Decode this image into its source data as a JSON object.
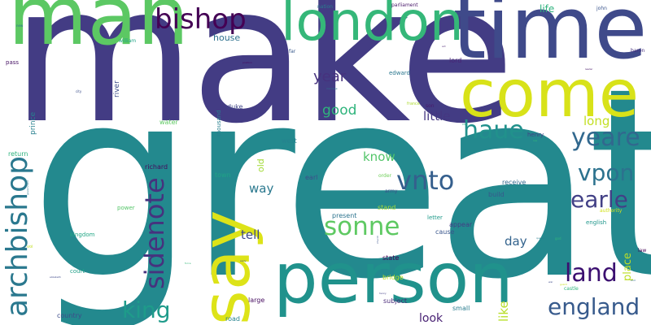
{
  "words": [
    {
      "text": "make",
      "color": "#433c84"
    },
    {
      "text": "great",
      "color": "#23898e"
    },
    {
      "text": "time",
      "color": "#3f4a8a"
    },
    {
      "text": "man",
      "color": "#5cc863"
    },
    {
      "text": "person",
      "color": "#20928c"
    },
    {
      "text": "come",
      "color": "#d8e219"
    },
    {
      "text": "london",
      "color": "#35b779"
    },
    {
      "text": "say",
      "color": "#dde318"
    },
    {
      "text": "bishop",
      "color": "#440154"
    },
    {
      "text": "archbishop",
      "color": "#2a788e"
    },
    {
      "text": "sidenote",
      "color": "#46327e"
    },
    {
      "text": "vnto",
      "color": "#355f8d"
    },
    {
      "text": "sonne",
      "color": "#5ec962"
    },
    {
      "text": "haue",
      "color": "#21918c"
    },
    {
      "text": "yeare",
      "color": "#31688e"
    },
    {
      "text": "vpon",
      "color": "#2c728e"
    },
    {
      "text": "earle",
      "color": "#424086"
    },
    {
      "text": "king",
      "color": "#1e9b8a"
    },
    {
      "text": "land",
      "color": "#3b0f70"
    },
    {
      "text": "england",
      "color": "#375a8c"
    },
    {
      "text": "year",
      "color": "#46327e"
    },
    {
      "text": "good",
      "color": "#2fb47c"
    },
    {
      "text": "little",
      "color": "#453781"
    },
    {
      "text": "know",
      "color": "#52c569"
    },
    {
      "text": "long",
      "color": "#c2df23"
    },
    {
      "text": "way",
      "color": "#2a788e"
    },
    {
      "text": "tell",
      "color": "#3e4989"
    },
    {
      "text": "day",
      "color": "#33638d"
    },
    {
      "text": "look",
      "color": "#482173"
    },
    {
      "text": "like",
      "color": "#b8de29"
    },
    {
      "text": "place",
      "color": "#bddf26"
    },
    {
      "text": "house",
      "color": "#2d718e"
    },
    {
      "text": "life",
      "color": "#2db27d"
    },
    {
      "text": "old",
      "color": "#a2da37"
    },
    {
      "text": "prince",
      "color": "#277f8e"
    },
    {
      "text": "river",
      "color": "#3d4d8a"
    },
    {
      "text": "duke",
      "color": "#404688"
    },
    {
      "text": "thousand",
      "color": "#277f8e"
    },
    {
      "text": "water",
      "color": "#5ec962"
    },
    {
      "text": "west",
      "color": "#26828e"
    },
    {
      "text": "earl",
      "color": "#3e4c8a"
    },
    {
      "text": "town",
      "color": "#20a386"
    },
    {
      "text": "richard",
      "color": "#46085c"
    },
    {
      "text": "receive",
      "color": "#31688e"
    },
    {
      "text": "build",
      "color": "#38588c"
    },
    {
      "text": "power",
      "color": "#54c568"
    },
    {
      "text": "kingdom",
      "color": "#22a785"
    },
    {
      "text": "return",
      "color": "#2db27d"
    },
    {
      "text": "william",
      "color": "#20a486"
    },
    {
      "text": "pass",
      "color": "#471365"
    },
    {
      "text": "court",
      "color": "#1fa088"
    },
    {
      "text": "country",
      "color": "#3e4c8a"
    },
    {
      "text": "road",
      "color": "#25838e"
    },
    {
      "text": "large",
      "color": "#470e61"
    },
    {
      "text": "subject",
      "color": "#482878"
    },
    {
      "text": "small",
      "color": "#287c8e"
    },
    {
      "text": "state",
      "color": "#440154"
    },
    {
      "text": "bridge",
      "color": "#bddf26"
    },
    {
      "text": "present",
      "color": "#2c738e"
    },
    {
      "text": "stand",
      "color": "#a5db36"
    },
    {
      "text": "cause",
      "color": "#39558c"
    },
    {
      "text": "letter",
      "color": "#1f9a8a"
    },
    {
      "text": "appear",
      "color": "#433e85"
    },
    {
      "text": "army",
      "color": "#3b528b"
    },
    {
      "text": "order",
      "color": "#6ece58"
    },
    {
      "text": "english",
      "color": "#1f968b"
    },
    {
      "text": "authority",
      "color": "#d2e21b"
    },
    {
      "text": "henry",
      "color": "#424086"
    },
    {
      "text": "edward",
      "color": "#2a778e"
    },
    {
      "text": "lord",
      "color": "#482475"
    },
    {
      "text": "son",
      "color": "#481a6c"
    },
    {
      "text": "france",
      "color": "#addc30"
    },
    {
      "text": "john",
      "color": "#3a548c"
    },
    {
      "text": "nation",
      "color": "#287d8e"
    },
    {
      "text": "parliament",
      "color": "#481769"
    },
    {
      "text": "far",
      "color": "#38598c"
    },
    {
      "text": "baron",
      "color": "#46307e"
    },
    {
      "text": "law",
      "color": "#440154"
    },
    {
      "text": "castle",
      "color": "#2fb47c"
    },
    {
      "text": "guard",
      "color": "#c8e020"
    },
    {
      "text": "church",
      "color": "#3b528b"
    },
    {
      "text": "marriage",
      "color": "#2c738e"
    },
    {
      "text": "position",
      "color": "#46085c"
    },
    {
      "text": "city",
      "color": "#3c4f8a"
    },
    {
      "text": "elizabeth",
      "color": "#3e4989"
    },
    {
      "text": "government",
      "color": "#2a788e"
    },
    {
      "text": "voi",
      "color": "#c2df23"
    },
    {
      "text": "force",
      "color": "#35b779"
    },
    {
      "text": "early",
      "color": "#3b528b"
    },
    {
      "text": "henry",
      "color": "#433e85"
    },
    {
      "text": "leader",
      "color": "#481769"
    },
    {
      "text": "god",
      "color": "#2fb47c"
    },
    {
      "text": "queen",
      "color": "#287c8e"
    },
    {
      "text": "act",
      "color": "#481f70"
    },
    {
      "text": "new",
      "color": "#2c728e"
    },
    {
      "text": "sea",
      "color": "#32b67a"
    },
    {
      "text": "end",
      "color": "#31688e"
    },
    {
      "text": "war",
      "color": "#3e4a89"
    },
    {
      "text": "ship",
      "color": "#22a884"
    }
  ]
}
